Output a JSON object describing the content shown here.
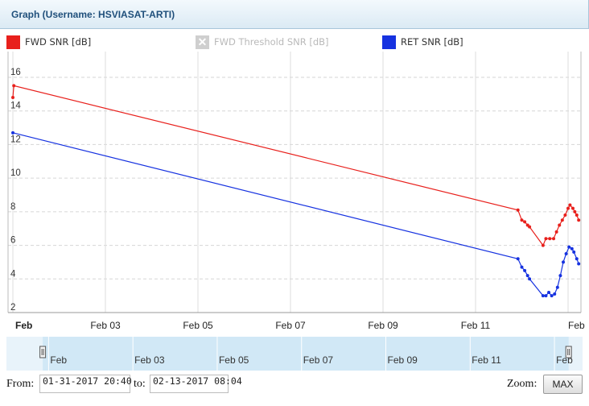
{
  "window": {
    "title": "Graph (Username: HSVIASAT-ARTI)"
  },
  "legend": [
    {
      "label": "FWD SNR [dB]",
      "color": "#e8201c",
      "enabled": true
    },
    {
      "label": "FWD Threshold SNR [dB]",
      "color": "#cfcfcf",
      "enabled": false
    },
    {
      "label": "RET SNR [dB]",
      "color": "#1632e0",
      "enabled": true
    }
  ],
  "chart_data": {
    "type": "line",
    "ylim": [
      2,
      17
    ],
    "xlim": [
      "2017-02-01T00:00",
      "2017-02-13T00:00"
    ],
    "y_ticks": [
      2,
      4,
      6,
      8,
      10,
      12,
      14,
      16
    ],
    "x_ticks": [
      {
        "label": "Feb",
        "at": "2017-02-01T00:00",
        "bold": true
      },
      {
        "label": "Feb 03",
        "at": "2017-02-03T00:00"
      },
      {
        "label": "Feb 05",
        "at": "2017-02-05T00:00"
      },
      {
        "label": "Feb 07",
        "at": "2017-02-07T00:00"
      },
      {
        "label": "Feb 09",
        "at": "2017-02-09T00:00"
      },
      {
        "label": "Feb 11",
        "at": "2017-02-11T00:00"
      },
      {
        "label": "Feb",
        "at": "2017-02-13T00:00"
      }
    ],
    "series": [
      {
        "name": "FWD SNR [dB]",
        "color": "#e8201c",
        "points": [
          [
            "2017-02-01T00:00",
            14.8
          ],
          [
            "2017-02-01T00:30",
            15.5
          ],
          [
            "2017-02-11T22:00",
            8.1
          ],
          [
            "2017-02-12T00:00",
            7.5
          ],
          [
            "2017-02-12T01:30",
            7.4
          ],
          [
            "2017-02-12T03:00",
            7.2
          ],
          [
            "2017-02-12T04:00",
            7.1
          ],
          [
            "2017-02-12T11:00",
            6.0
          ],
          [
            "2017-02-12T12:30",
            6.4
          ],
          [
            "2017-02-12T14:30",
            6.4
          ],
          [
            "2017-02-12T16:30",
            6.4
          ],
          [
            "2017-02-12T18:00",
            6.8
          ],
          [
            "2017-02-12T19:30",
            7.2
          ],
          [
            "2017-02-12T21:00",
            7.5
          ],
          [
            "2017-02-12T22:30",
            7.8
          ],
          [
            "2017-02-13T00:00",
            8.2
          ],
          [
            "2017-02-13T01:00",
            8.4
          ],
          [
            "2017-02-13T02:30",
            8.2
          ],
          [
            "2017-02-13T03:30",
            8.0
          ],
          [
            "2017-02-13T04:30",
            7.8
          ],
          [
            "2017-02-13T05:30",
            7.5
          ]
        ]
      },
      {
        "name": "RET SNR [dB]",
        "color": "#1632e0",
        "points": [
          [
            "2017-02-01T00:00",
            12.7
          ],
          [
            "2017-02-11T22:00",
            5.2
          ],
          [
            "2017-02-12T00:00",
            4.7
          ],
          [
            "2017-02-12T01:30",
            4.5
          ],
          [
            "2017-02-12T03:00",
            4.2
          ],
          [
            "2017-02-12T04:00",
            4.0
          ],
          [
            "2017-02-12T11:00",
            3.0
          ],
          [
            "2017-02-12T12:30",
            3.0
          ],
          [
            "2017-02-12T14:00",
            3.2
          ],
          [
            "2017-02-12T15:30",
            3.0
          ],
          [
            "2017-02-12T17:00",
            3.1
          ],
          [
            "2017-02-12T18:30",
            3.5
          ],
          [
            "2017-02-12T20:00",
            4.2
          ],
          [
            "2017-02-12T21:30",
            5.0
          ],
          [
            "2017-02-12T23:00",
            5.5
          ],
          [
            "2017-02-13T00:30",
            5.9
          ],
          [
            "2017-02-13T02:00",
            5.8
          ],
          [
            "2017-02-13T03:00",
            5.6
          ],
          [
            "2017-02-13T04:30",
            5.2
          ],
          [
            "2017-02-13T05:30",
            4.9
          ]
        ]
      }
    ],
    "grid": true
  },
  "navigator": {
    "labels": [
      "Feb",
      "Feb 03",
      "Feb 05",
      "Feb 07",
      "Feb 09",
      "Feb 11",
      "Feb"
    ],
    "selection_start": "2017-01-31T20:40",
    "selection_end": "2017-02-13T08:04",
    "range_start": "2017-01-31T00:00",
    "range_end": "2017-02-13T16:00"
  },
  "range": {
    "from_label": "From:",
    "from_value": "01-31-2017 20:40",
    "to_label": "to:",
    "to_value": "02-13-2017 08:04",
    "zoom_label": "Zoom:",
    "zoom_button": "MAX"
  }
}
